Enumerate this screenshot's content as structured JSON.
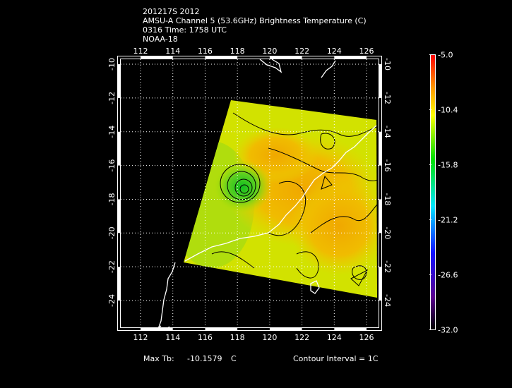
{
  "header": {
    "lines": [
      "201217S 2012",
      "AMSU-A Channel 5 (53.6GHz) Brightness Temperature (C)",
      "0316 Time: 1758 UTC",
      "NOAA-18"
    ]
  },
  "footer": {
    "max_tb_label": "Max Tb:",
    "max_tb_value": "-10.1579",
    "max_tb_unit": "C",
    "contour_interval": "Contour Interval = 1C"
  },
  "colors": {
    "background": "#000000",
    "frame": "#ffffff",
    "coastline": "#ffffff",
    "contour": "#000000"
  },
  "chart_data": {
    "type": "heatmap",
    "lon_ticks": [
      "112",
      "114",
      "116",
      "118",
      "120",
      "122",
      "124",
      "126"
    ],
    "lat_ticks": [
      "-10",
      "-12",
      "-14",
      "-16",
      "-18",
      "-20",
      "-22",
      "-24"
    ],
    "lon_range": [
      110.6,
      126.8
    ],
    "lat_range": [
      -9.8,
      -25.8
    ],
    "grid": true,
    "colorbar": {
      "range": [
        -32.0,
        -5.0
      ],
      "ticks": [
        "-5.0",
        "-10.4",
        "-15.8",
        "-21.2",
        "-26.6",
        "-32.0"
      ],
      "colormap": "rainbow (black-purple-blue-cyan-green-yellow-orange-red)"
    },
    "max_value": -10.1579,
    "contour_interval": 1
  }
}
